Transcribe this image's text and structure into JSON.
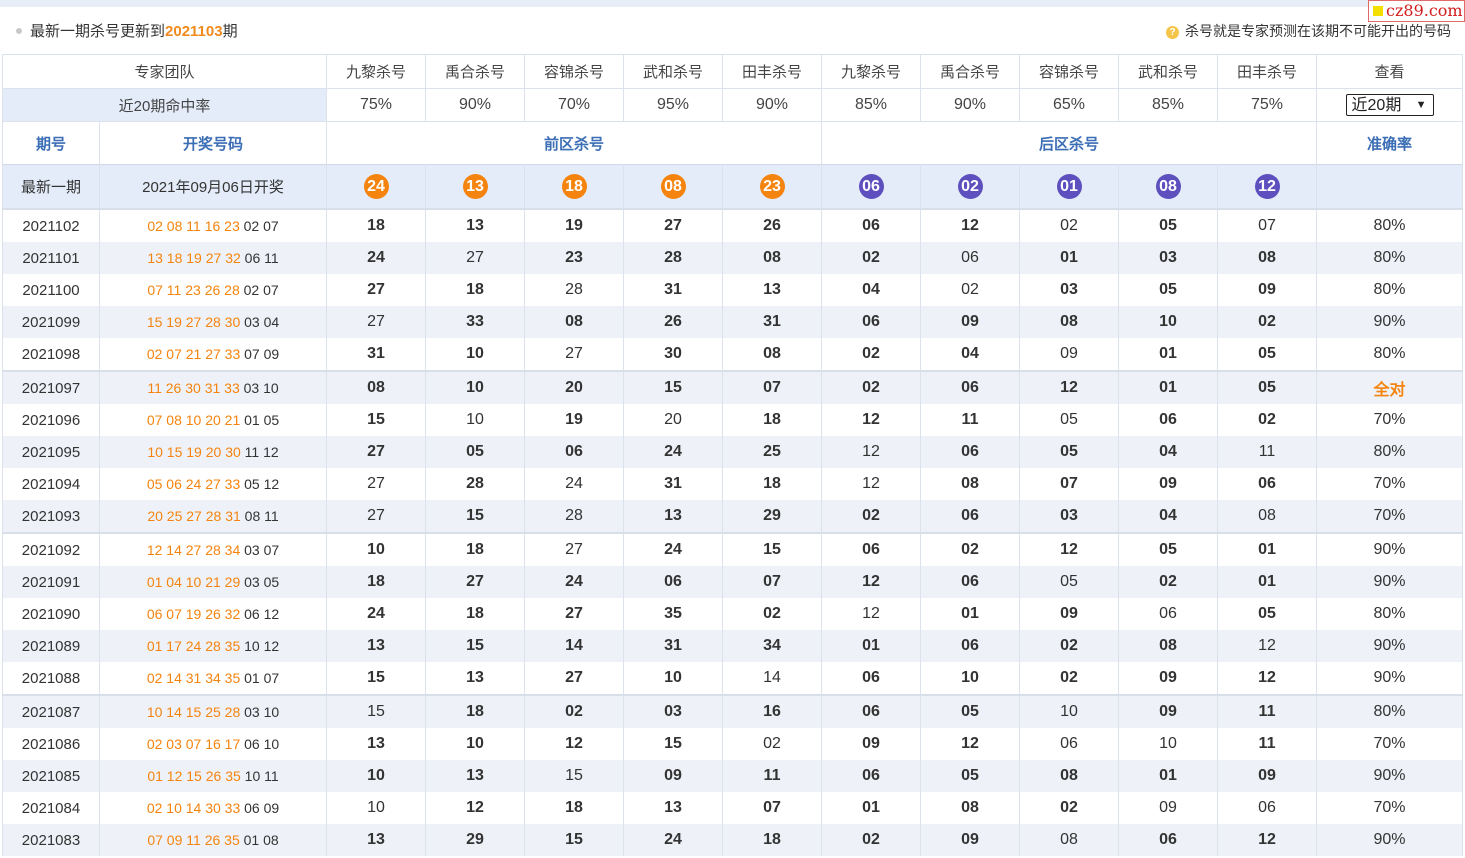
{
  "header": {
    "prefix": "最新一期杀号更新到",
    "issue": "2021103",
    "suffix": "期",
    "hint_icon": "?",
    "hint": "杀号就是专家预测在该期不可能开出的号码",
    "logo_text": "cz89.com"
  },
  "expert_row": {
    "team_label": "专家团队",
    "experts": [
      "九黎杀号",
      "禹合杀号",
      "容锦杀号",
      "武和杀号",
      "田丰杀号",
      "九黎杀号",
      "禹合杀号",
      "容锦杀号",
      "武和杀号",
      "田丰杀号"
    ],
    "view_label": "查看"
  },
  "rate_row": {
    "label": "近20期命中率",
    "rates": [
      "75%",
      "90%",
      "70%",
      "95%",
      "90%",
      "85%",
      "90%",
      "65%",
      "85%",
      "75%"
    ],
    "select_value": "近20期"
  },
  "section_header": {
    "issue": "期号",
    "draw": "开奖号码",
    "front": "前区杀号",
    "back": "后区杀号",
    "accuracy": "准确率"
  },
  "latest": {
    "label": "最新一期",
    "date": "2021年09月06日开奖",
    "front": [
      "24",
      "13",
      "18",
      "08",
      "23"
    ],
    "back": [
      "06",
      "02",
      "01",
      "08",
      "12"
    ]
  },
  "rows": [
    {
      "issue": "2021102",
      "front_draw": "02 08 11 16 23",
      "back_draw": "02 07",
      "kills": [
        "18",
        "13",
        "19",
        "27",
        "26",
        "06",
        "12",
        "02",
        "05",
        "07"
      ],
      "hit": [
        1,
        1,
        1,
        1,
        1,
        1,
        1,
        0,
        1,
        0
      ],
      "accuracy": "80%"
    },
    {
      "issue": "2021101",
      "front_draw": "13 18 19 27 32",
      "back_draw": "06 11",
      "kills": [
        "24",
        "27",
        "23",
        "28",
        "08",
        "02",
        "06",
        "01",
        "03",
        "08"
      ],
      "hit": [
        1,
        0,
        1,
        1,
        1,
        1,
        0,
        1,
        1,
        1
      ],
      "accuracy": "80%"
    },
    {
      "issue": "2021100",
      "front_draw": "07 11 23 26 28",
      "back_draw": "02 07",
      "kills": [
        "27",
        "18",
        "28",
        "31",
        "13",
        "04",
        "02",
        "03",
        "05",
        "09"
      ],
      "hit": [
        1,
        1,
        0,
        1,
        1,
        1,
        0,
        1,
        1,
        1
      ],
      "accuracy": "80%"
    },
    {
      "issue": "2021099",
      "front_draw": "15 19 27 28 30",
      "back_draw": "03 04",
      "kills": [
        "27",
        "33",
        "08",
        "26",
        "31",
        "06",
        "09",
        "08",
        "10",
        "02"
      ],
      "hit": [
        0,
        1,
        1,
        1,
        1,
        1,
        1,
        1,
        1,
        1
      ],
      "accuracy": "90%"
    },
    {
      "issue": "2021098",
      "front_draw": "02 07 21 27 33",
      "back_draw": "07 09",
      "kills": [
        "31",
        "10",
        "27",
        "30",
        "08",
        "02",
        "04",
        "09",
        "01",
        "05"
      ],
      "hit": [
        1,
        1,
        0,
        1,
        1,
        1,
        1,
        0,
        1,
        1
      ],
      "accuracy": "80%"
    },
    {
      "issue": "2021097",
      "front_draw": "11 26 30 31 33",
      "back_draw": "03 10",
      "kills": [
        "08",
        "10",
        "20",
        "15",
        "07",
        "02",
        "06",
        "12",
        "01",
        "05"
      ],
      "hit": [
        1,
        1,
        1,
        1,
        1,
        1,
        1,
        1,
        1,
        1
      ],
      "accuracy": "全对"
    },
    {
      "issue": "2021096",
      "front_draw": "07 08 10 20 21",
      "back_draw": "01 05",
      "kills": [
        "15",
        "10",
        "19",
        "20",
        "18",
        "12",
        "11",
        "05",
        "06",
        "02"
      ],
      "hit": [
        1,
        0,
        1,
        0,
        1,
        1,
        1,
        0,
        1,
        1
      ],
      "accuracy": "70%"
    },
    {
      "issue": "2021095",
      "front_draw": "10 15 19 20 30",
      "back_draw": "11 12",
      "kills": [
        "27",
        "05",
        "06",
        "24",
        "25",
        "12",
        "06",
        "05",
        "04",
        "11"
      ],
      "hit": [
        1,
        1,
        1,
        1,
        1,
        0,
        1,
        1,
        1,
        0
      ],
      "accuracy": "80%"
    },
    {
      "issue": "2021094",
      "front_draw": "05 06 24 27 33",
      "back_draw": "05 12",
      "kills": [
        "27",
        "28",
        "24",
        "31",
        "18",
        "12",
        "08",
        "07",
        "09",
        "06"
      ],
      "hit": [
        0,
        1,
        0,
        1,
        1,
        0,
        1,
        1,
        1,
        1
      ],
      "accuracy": "70%"
    },
    {
      "issue": "2021093",
      "front_draw": "20 25 27 28 31",
      "back_draw": "08 11",
      "kills": [
        "27",
        "15",
        "28",
        "13",
        "29",
        "02",
        "06",
        "03",
        "04",
        "08"
      ],
      "hit": [
        0,
        1,
        0,
        1,
        1,
        1,
        1,
        1,
        1,
        0
      ],
      "accuracy": "70%"
    },
    {
      "issue": "2021092",
      "front_draw": "12 14 27 28 34",
      "back_draw": "03 07",
      "kills": [
        "10",
        "18",
        "27",
        "24",
        "15",
        "06",
        "02",
        "12",
        "05",
        "01"
      ],
      "hit": [
        1,
        1,
        0,
        1,
        1,
        1,
        1,
        1,
        1,
        1
      ],
      "accuracy": "90%"
    },
    {
      "issue": "2021091",
      "front_draw": "01 04 10 21 29",
      "back_draw": "03 05",
      "kills": [
        "18",
        "27",
        "24",
        "06",
        "07",
        "12",
        "06",
        "05",
        "02",
        "01"
      ],
      "hit": [
        1,
        1,
        1,
        1,
        1,
        1,
        1,
        0,
        1,
        1
      ],
      "accuracy": "90%"
    },
    {
      "issue": "2021090",
      "front_draw": "06 07 19 26 32",
      "back_draw": "06 12",
      "kills": [
        "24",
        "18",
        "27",
        "35",
        "02",
        "12",
        "01",
        "09",
        "06",
        "05"
      ],
      "hit": [
        1,
        1,
        1,
        1,
        1,
        0,
        1,
        1,
        0,
        1
      ],
      "accuracy": "80%"
    },
    {
      "issue": "2021089",
      "front_draw": "01 17 24 28 35",
      "back_draw": "10 12",
      "kills": [
        "13",
        "15",
        "14",
        "31",
        "34",
        "01",
        "06",
        "02",
        "08",
        "12"
      ],
      "hit": [
        1,
        1,
        1,
        1,
        1,
        1,
        1,
        1,
        1,
        0
      ],
      "accuracy": "90%"
    },
    {
      "issue": "2021088",
      "front_draw": "02 14 31 34 35",
      "back_draw": "01 07",
      "kills": [
        "15",
        "13",
        "27",
        "10",
        "14",
        "06",
        "10",
        "02",
        "09",
        "12"
      ],
      "hit": [
        1,
        1,
        1,
        1,
        0,
        1,
        1,
        1,
        1,
        1
      ],
      "accuracy": "90%"
    },
    {
      "issue": "2021087",
      "front_draw": "10 14 15 25 28",
      "back_draw": "03 10",
      "kills": [
        "15",
        "18",
        "02",
        "03",
        "16",
        "06",
        "05",
        "10",
        "09",
        "11"
      ],
      "hit": [
        0,
        1,
        1,
        1,
        1,
        1,
        1,
        0,
        1,
        1
      ],
      "accuracy": "80%"
    },
    {
      "issue": "2021086",
      "front_draw": "02 03 07 16 17",
      "back_draw": "06 10",
      "kills": [
        "13",
        "10",
        "12",
        "15",
        "02",
        "09",
        "12",
        "06",
        "10",
        "11"
      ],
      "hit": [
        1,
        1,
        1,
        1,
        0,
        1,
        1,
        0,
        0,
        1
      ],
      "accuracy": "70%"
    },
    {
      "issue": "2021085",
      "front_draw": "01 12 15 26 35",
      "back_draw": "10 11",
      "kills": [
        "10",
        "13",
        "15",
        "09",
        "11",
        "06",
        "05",
        "08",
        "01",
        "09"
      ],
      "hit": [
        1,
        1,
        0,
        1,
        1,
        1,
        1,
        1,
        1,
        1
      ],
      "accuracy": "90%"
    },
    {
      "issue": "2021084",
      "front_draw": "02 10 14 30 33",
      "back_draw": "06 09",
      "kills": [
        "10",
        "12",
        "18",
        "13",
        "07",
        "01",
        "08",
        "02",
        "09",
        "06"
      ],
      "hit": [
        0,
        1,
        1,
        1,
        1,
        1,
        1,
        1,
        0,
        0
      ],
      "accuracy": "70%"
    },
    {
      "issue": "2021083",
      "front_draw": "07 09 11 26 35",
      "back_draw": "01 08",
      "kills": [
        "13",
        "29",
        "15",
        "24",
        "18",
        "02",
        "09",
        "08",
        "06",
        "12"
      ],
      "hit": [
        1,
        1,
        1,
        1,
        1,
        1,
        1,
        0,
        1,
        1
      ],
      "accuracy": "90%"
    }
  ]
}
